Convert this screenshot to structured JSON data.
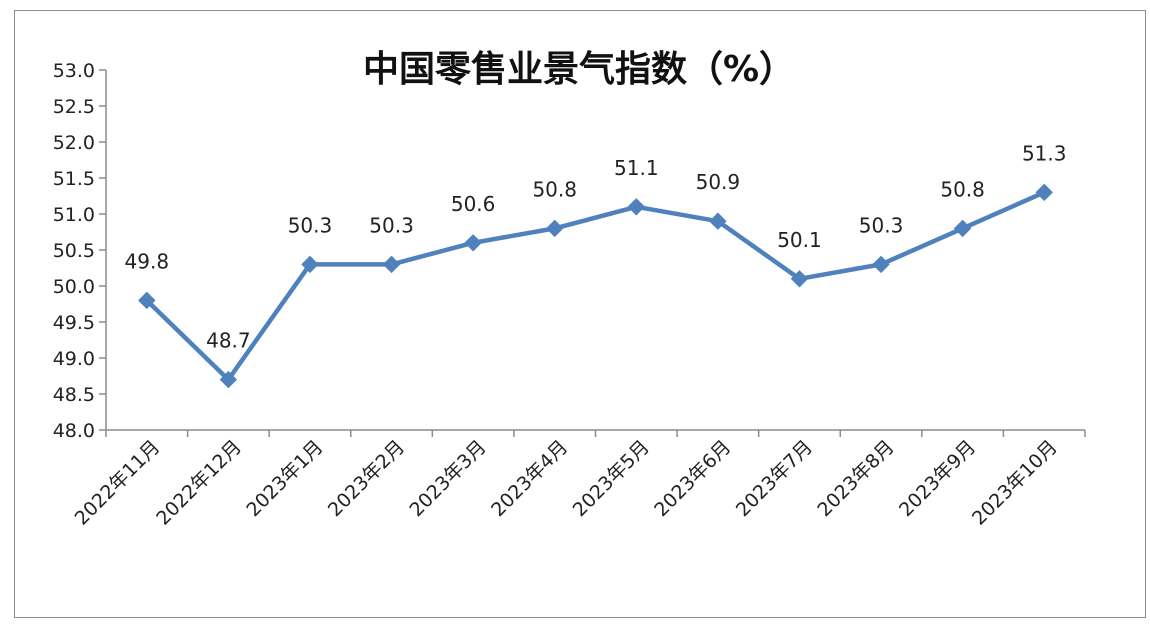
{
  "chart_data": {
    "type": "line",
    "title": "中国零售业景气指数（%）",
    "categories": [
      "2022年11月",
      "2022年12月",
      "2023年1月",
      "2023年2月",
      "2023年3月",
      "2023年4月",
      "2023年5月",
      "2023年6月",
      "2023年7月",
      "2023年8月",
      "2023年9月",
      "2023年10月"
    ],
    "values": [
      49.8,
      48.7,
      50.3,
      50.3,
      50.6,
      50.8,
      51.1,
      50.9,
      50.1,
      50.3,
      50.8,
      51.3
    ],
    "value_labels": [
      "49.8",
      "48.7",
      "50.3",
      "50.3",
      "50.6",
      "50.8",
      "51.1",
      "50.9",
      "50.1",
      "50.3",
      "50.8",
      "51.3"
    ],
    "ylim": [
      48.0,
      53.0
    ],
    "y_ticks": [
      "48.0",
      "48.5",
      "49.0",
      "49.5",
      "50.0",
      "50.5",
      "51.0",
      "51.5",
      "52.0",
      "52.5",
      "53.0"
    ],
    "grid": false,
    "legend": "none",
    "marker": "diamond",
    "line_color": "#4f81bd"
  }
}
